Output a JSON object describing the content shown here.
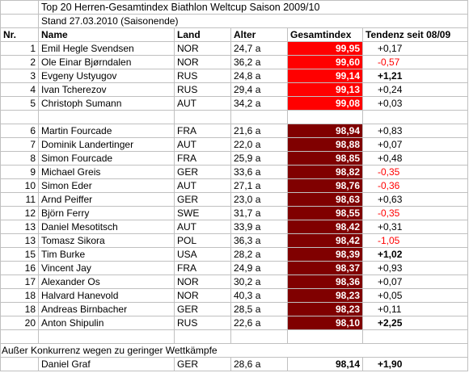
{
  "title": "Top 20 Herren-Gesamtindex Biathlon Weltcup Saison 2009/10",
  "subtitle": "Stand 27.03.2010 (Saisonende)",
  "headers": {
    "nr": "Nr.",
    "name": "Name",
    "land": "Land",
    "alter": "Alter",
    "index": "Gesamtindex",
    "tendenz": "Tendenz seit 08/09"
  },
  "top5": [
    {
      "nr": "1",
      "name": "Emil Hegle Svendsen",
      "land": "NOR",
      "alter": "24,7 a",
      "index": "99,95",
      "tendenz": "+0,17",
      "neg": false,
      "bold": false
    },
    {
      "nr": "2",
      "name": "Ole Einar Bjørndalen",
      "land": "NOR",
      "alter": "36,2 a",
      "index": "99,60",
      "tendenz": "-0,57",
      "neg": true,
      "bold": false
    },
    {
      "nr": "3",
      "name": "Evgeny Ustyugov",
      "land": "RUS",
      "alter": "24,8 a",
      "index": "99,14",
      "tendenz": "+1,21",
      "neg": false,
      "bold": true
    },
    {
      "nr": "4",
      "name": "Ivan Tcherezov",
      "land": "RUS",
      "alter": "29,4 a",
      "index": "99,13",
      "tendenz": "+0,24",
      "neg": false,
      "bold": false
    },
    {
      "nr": "5",
      "name": "Christoph Sumann",
      "land": "AUT",
      "alter": "34,2 a",
      "index": "99,08",
      "tendenz": "+0,03",
      "neg": false,
      "bold": false
    }
  ],
  "rest": [
    {
      "nr": "6",
      "name": "Martin Fourcade",
      "land": "FRA",
      "alter": "21,6 a",
      "index": "98,94",
      "tendenz": "+0,83",
      "neg": false,
      "bold": false
    },
    {
      "nr": "7",
      "name": "Dominik Landertinger",
      "land": "AUT",
      "alter": "22,0 a",
      "index": "98,88",
      "tendenz": "+0,07",
      "neg": false,
      "bold": false
    },
    {
      "nr": "8",
      "name": "Simon Fourcade",
      "land": "FRA",
      "alter": "25,9 a",
      "index": "98,85",
      "tendenz": "+0,48",
      "neg": false,
      "bold": false
    },
    {
      "nr": "9",
      "name": "Michael Greis",
      "land": "GER",
      "alter": "33,6 a",
      "index": "98,82",
      "tendenz": "-0,35",
      "neg": true,
      "bold": false
    },
    {
      "nr": "10",
      "name": "Simon Eder",
      "land": "AUT",
      "alter": "27,1 a",
      "index": "98,76",
      "tendenz": "-0,36",
      "neg": true,
      "bold": false
    },
    {
      "nr": "11",
      "name": "Arnd Peiffer",
      "land": "GER",
      "alter": "23,0 a",
      "index": "98,63",
      "tendenz": "+0,63",
      "neg": false,
      "bold": false
    },
    {
      "nr": "12",
      "name": "Björn Ferry",
      "land": "SWE",
      "alter": "31,7 a",
      "index": "98,55",
      "tendenz": "-0,35",
      "neg": true,
      "bold": false
    },
    {
      "nr": "13",
      "name": "Daniel Mesotitsch",
      "land": "AUT",
      "alter": "33,9 a",
      "index": "98,42",
      "tendenz": "+0,31",
      "neg": false,
      "bold": false
    },
    {
      "nr": "13",
      "name": "Tomasz Sikora",
      "land": "POL",
      "alter": "36,3 a",
      "index": "98,42",
      "tendenz": "-1,05",
      "neg": true,
      "bold": false
    },
    {
      "nr": "15",
      "name": "Tim Burke",
      "land": "USA",
      "alter": "28,2 a",
      "index": "98,39",
      "tendenz": "+1,02",
      "neg": false,
      "bold": true
    },
    {
      "nr": "16",
      "name": "Vincent Jay",
      "land": "FRA",
      "alter": "24,9 a",
      "index": "98,37",
      "tendenz": "+0,93",
      "neg": false,
      "bold": false
    },
    {
      "nr": "17",
      "name": "Alexander Os",
      "land": "NOR",
      "alter": "30,2 a",
      "index": "98,36",
      "tendenz": "+0,07",
      "neg": false,
      "bold": false
    },
    {
      "nr": "18",
      "name": "Halvard Hanevold",
      "land": "NOR",
      "alter": "40,3 a",
      "index": "98,23",
      "tendenz": "+0,05",
      "neg": false,
      "bold": false
    },
    {
      "nr": "18",
      "name": "Andreas Birnbacher",
      "land": "GER",
      "alter": "28,5 a",
      "index": "98,23",
      "tendenz": "+0,11",
      "neg": false,
      "bold": false
    },
    {
      "nr": "20",
      "name": "Anton Shipulin",
      "land": "RUS",
      "alter": "22,6 a",
      "index": "98,10",
      "tendenz": "+2,25",
      "neg": false,
      "bold": true
    }
  ],
  "note": "Außer Konkurrenz wegen zu geringer Wettkämpfe",
  "extra": {
    "name": "Daniel Graf",
    "land": "GER",
    "alter": "28,6 a",
    "index": "98,14",
    "tendenz": "+1,90"
  },
  "colors": {
    "top": "#ff0000",
    "rest": "#800000",
    "negative": "#ff0000"
  }
}
